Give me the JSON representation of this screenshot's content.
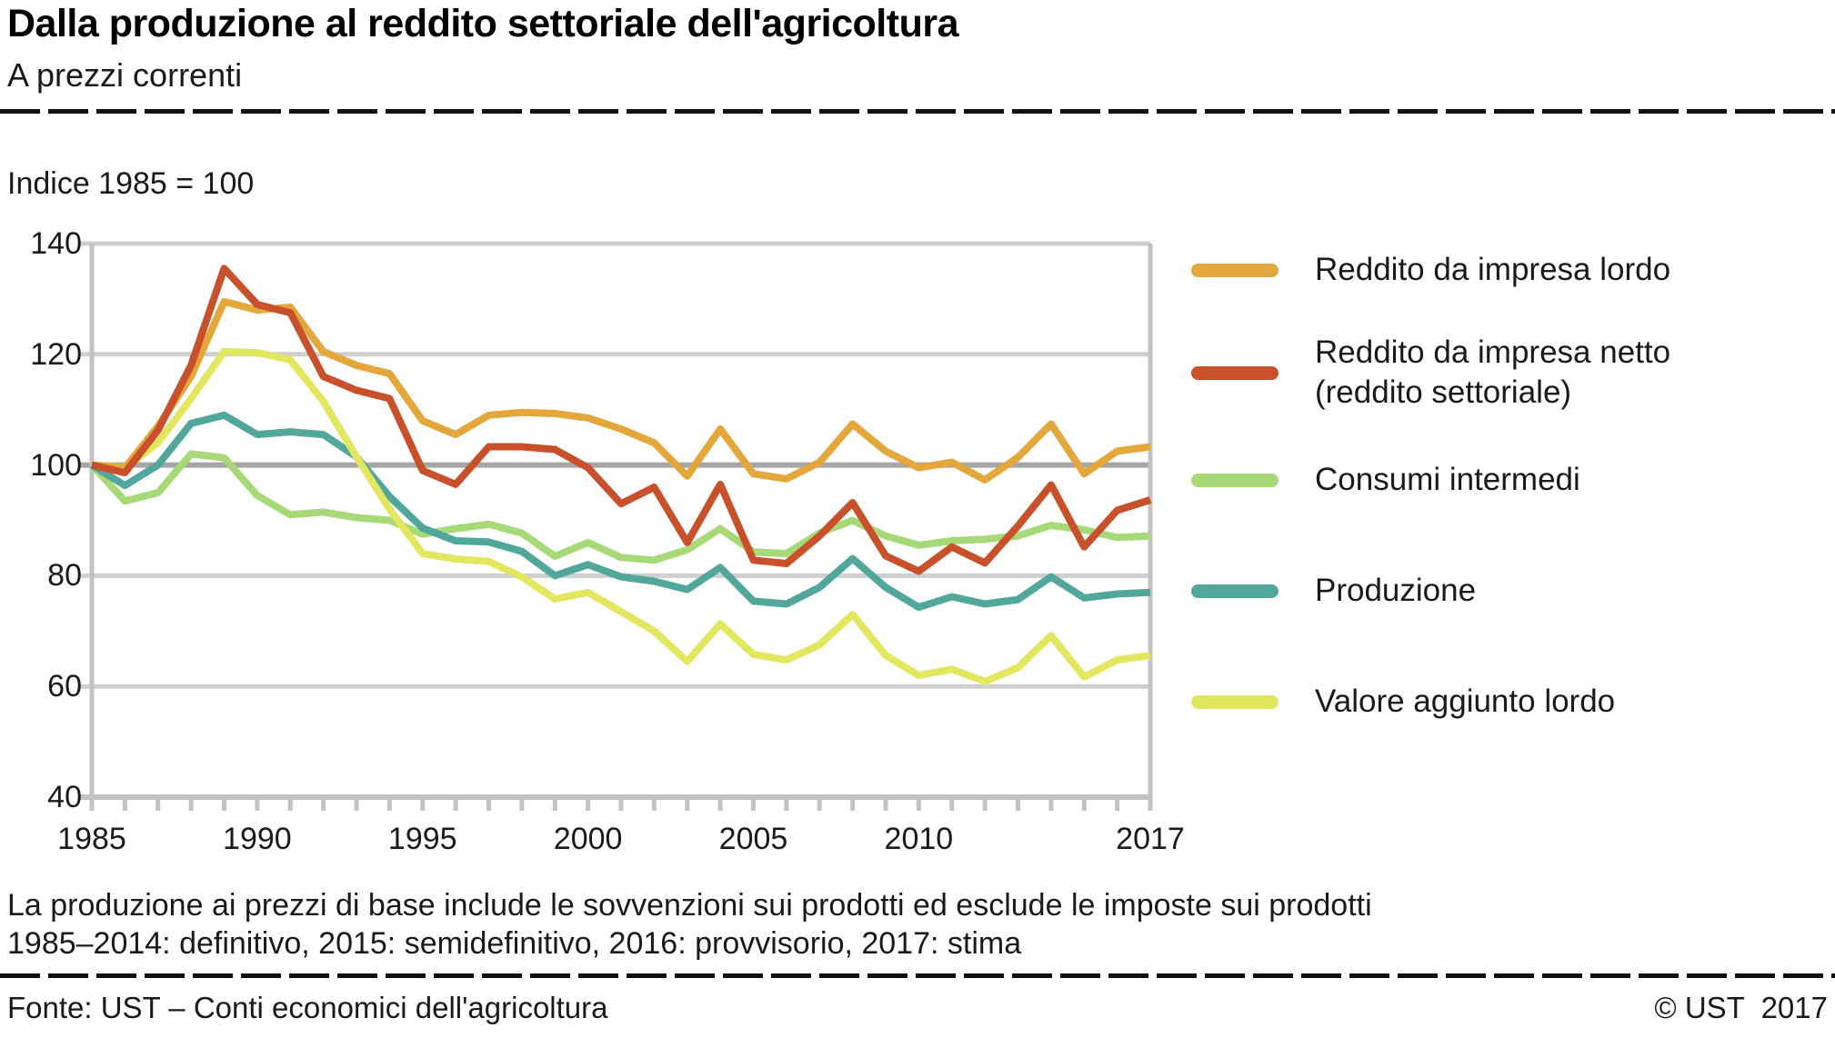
{
  "header": {
    "title": "Dalla produzione al reddito settoriale dell'agricoltura",
    "subtitle": "A prezzi correnti"
  },
  "chart_data": {
    "type": "line",
    "axis_title": "Indice 1985 = 100",
    "x": [
      1985,
      1986,
      1987,
      1988,
      1989,
      1990,
      1991,
      1992,
      1993,
      1994,
      1995,
      1996,
      1997,
      1998,
      1999,
      2000,
      2001,
      2002,
      2003,
      2004,
      2005,
      2006,
      2007,
      2008,
      2009,
      2010,
      2011,
      2012,
      2013,
      2014,
      2015,
      2016,
      2017
    ],
    "x_ticks": [
      1985,
      1990,
      1995,
      2000,
      2005,
      2010,
      2017
    ],
    "y_ticks": [
      140,
      120,
      100,
      80,
      60,
      40
    ],
    "ylim": [
      40,
      140
    ],
    "emphasized_gridline": 100,
    "grid": "horizontal",
    "legend_position": "right",
    "series": [
      {
        "name": "Reddito da impresa lordo",
        "legend_lines": [
          "Reddito da impresa lordo"
        ],
        "color": "#E3A73B",
        "values": [
          100,
          99.5,
          107,
          116,
          129.5,
          128,
          128.5,
          120.5,
          118,
          116.5,
          108,
          105.5,
          109,
          109.5,
          109.3,
          108.5,
          106.5,
          104,
          98,
          106.5,
          98.4,
          97.5,
          100.5,
          107.4,
          102.5,
          99.5,
          100.5,
          97.3,
          101.4,
          107.4,
          98.4,
          102.5,
          103.3
        ]
      },
      {
        "name": "Reddito da impresa netto (reddito settoriale)",
        "legend_lines": [
          "Reddito da impresa netto",
          "(reddito settoriale)"
        ],
        "color": "#C8502B",
        "values": [
          100,
          98.6,
          106.3,
          118,
          135.5,
          129,
          127.5,
          116,
          113.5,
          112,
          99,
          96.5,
          103.3,
          103.3,
          102.8,
          99.5,
          93,
          96,
          86,
          96.5,
          82.8,
          82.2,
          87.2,
          93.2,
          83.6,
          80.8,
          85.2,
          82.3,
          89,
          96.4,
          85.2,
          91.8,
          93.7
        ]
      },
      {
        "name": "Consumi intermedi",
        "legend_lines": [
          "Consumi intermedi"
        ],
        "color": "#A7D978",
        "values": [
          100,
          93.5,
          95,
          102,
          101.3,
          94.5,
          91,
          91.5,
          90.5,
          90,
          87.5,
          88.5,
          89.3,
          87.7,
          83.5,
          86,
          83.3,
          82.8,
          84.7,
          88.5,
          84.3,
          84,
          87.7,
          90,
          87.2,
          85.5,
          86.3,
          86.6,
          87.2,
          89.1,
          88.3,
          86.9,
          87.2
        ]
      },
      {
        "name": "Produzione",
        "legend_lines": [
          "Produzione"
        ],
        "color": "#52A79C",
        "values": [
          100,
          96.3,
          100,
          107.5,
          109,
          105.5,
          106,
          105.5,
          101.5,
          94.3,
          88.6,
          86.3,
          86.1,
          84.4,
          80,
          82,
          79.8,
          79,
          77.5,
          81.5,
          75.4,
          74.9,
          77.9,
          83.1,
          77.9,
          74.3,
          76.2,
          74.9,
          75.7,
          79.8,
          76,
          76.7,
          77
        ]
      },
      {
        "name": "Valore aggiunto lordo",
        "legend_lines": [
          "Valore aggiunto lordo"
        ],
        "color": "#E2E75F",
        "values": [
          100,
          99.5,
          104,
          112,
          120.5,
          120.3,
          119,
          111.5,
          101.5,
          92,
          84,
          83,
          82.6,
          79.8,
          75.8,
          77,
          73.5,
          70,
          64.5,
          71.3,
          65.8,
          64.8,
          67.5,
          73,
          65.6,
          62,
          63.1,
          60.9,
          63.4,
          69.2,
          61.7,
          64.8,
          65.6
        ]
      }
    ],
    "colors": {
      "gridline": "#CFCFCF",
      "gridline_emphasized": "#A6A6A6",
      "axis": "#C2C2C2"
    }
  },
  "footnotes": {
    "line1": "La produzione ai prezzi di base include le sovvenzioni sui prodotti ed esclude le imposte sui prodotti",
    "line2": "1985–2014: definitivo, 2015: semidefinitivo, 2016: provvisorio, 2017: stima"
  },
  "source": {
    "left": "Fonte: UST – Conti economici dell'agricoltura",
    "right": "© UST  2017"
  }
}
